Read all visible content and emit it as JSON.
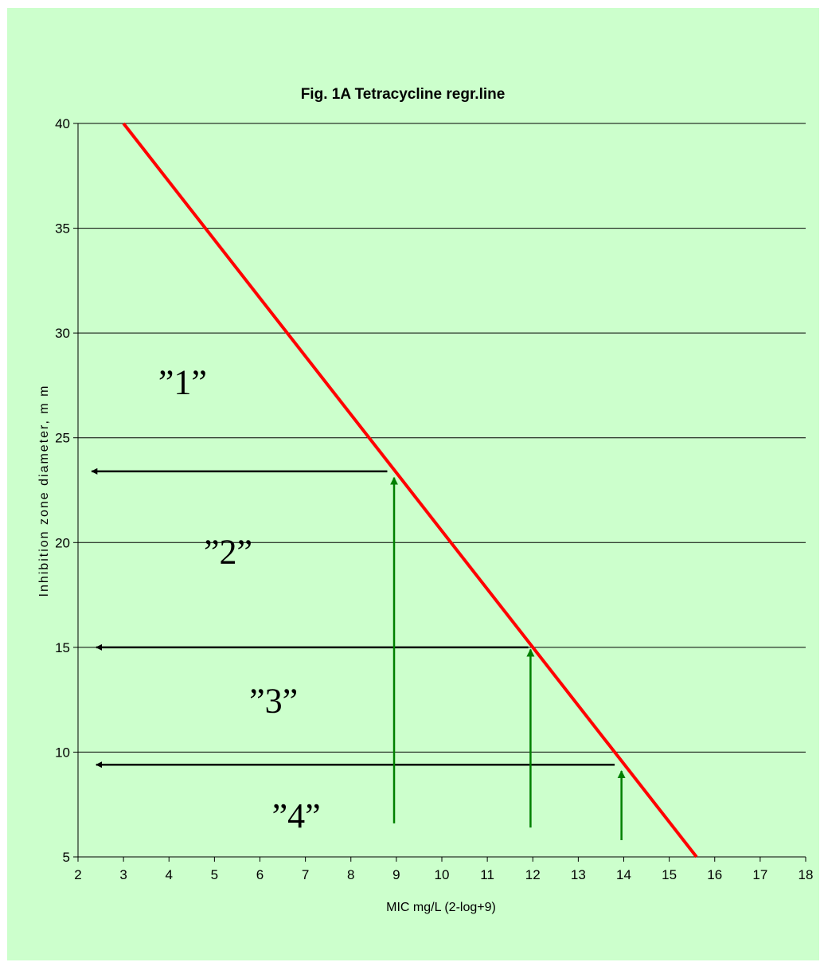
{
  "chart_data": {
    "type": "line",
    "title": "Fig. 1A   Tetracycline regr.line",
    "xlabel": "MIC mg/L (2-log+9)",
    "ylabel": "Inhibition zone diameter, m m",
    "xlim": [
      2,
      18
    ],
    "ylim": [
      5,
      40
    ],
    "x_ticks": [
      "2",
      "3",
      "4",
      "5",
      "6",
      "7",
      "8",
      "9",
      "10",
      "11",
      "12",
      "13",
      "14",
      "15",
      "16",
      "17",
      "18"
    ],
    "y_ticks": [
      "5",
      "10",
      "15",
      "20",
      "25",
      "30",
      "35",
      "40"
    ],
    "grid": "horizontal",
    "series": [
      {
        "color": "#ff0000",
        "x": [
          3.0,
          15.6
        ],
        "y": [
          40,
          5
        ]
      }
    ],
    "annotations": {
      "vertical_arrows": [
        {
          "x": 8.95,
          "y_from": 6.6,
          "y_to": 23.1,
          "color": "#008000"
        },
        {
          "x": 11.95,
          "y_from": 6.4,
          "y_to": 14.9,
          "color": "#008000"
        },
        {
          "x": 13.95,
          "y_from": 5.8,
          "y_to": 9.1,
          "color": "#008000"
        }
      ],
      "horizontal_arrows": [
        {
          "y": 23.4,
          "x_from": 8.8,
          "x_to": 2.3,
          "color": "#000000"
        },
        {
          "y": 15.0,
          "x_from": 11.9,
          "x_to": 2.4,
          "color": "#000000"
        },
        {
          "y": 9.4,
          "x_from": 13.8,
          "x_to": 2.4,
          "color": "#000000"
        }
      ],
      "region_labels": [
        {
          "text": "”1”",
          "x": 4.3,
          "y": 27.1
        },
        {
          "text": "”2”",
          "x": 5.3,
          "y": 19.0
        },
        {
          "text": "”3”",
          "x": 6.3,
          "y": 11.9
        },
        {
          "text": "”4”",
          "x": 6.8,
          "y": 6.4
        }
      ]
    }
  }
}
